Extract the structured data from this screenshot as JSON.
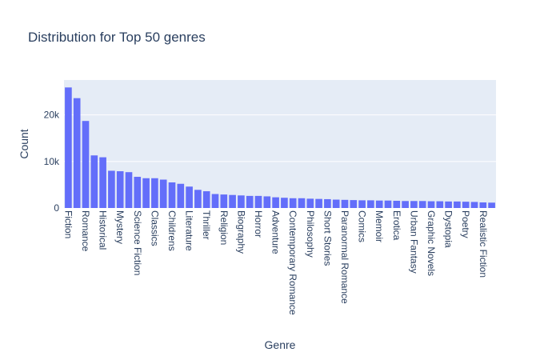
{
  "colors": {
    "bar": "#636efa",
    "plot_bg": "#e5ecf6",
    "grid": "#ffffff",
    "text": "#2a3f5f"
  },
  "chart_data": {
    "type": "bar",
    "title": "Distribution for Top 50 genres",
    "xlabel": "Genre",
    "ylabel": "Count",
    "ylim": [
      0,
      27500
    ],
    "yticks": [
      0,
      10000,
      20000
    ],
    "ytick_labels": [
      "0",
      "10k",
      "20k"
    ],
    "grid": true,
    "categories": [
      "Fiction",
      "",
      "Romance",
      "",
      "Historical",
      "",
      "Mystery",
      "",
      "Science Fiction",
      "",
      "Classics",
      "",
      "Childrens",
      "",
      "Literature",
      "",
      "Thriller",
      "",
      "Religion",
      "",
      "Biography",
      "",
      "Horror",
      "",
      "Adventure",
      "",
      "Contemporary Romance",
      "",
      "Philosophy",
      "",
      "Short Stories",
      "",
      "Paranormal Romance",
      "",
      "Comics",
      "",
      "Memoir",
      "",
      "Erotica",
      "",
      "Urban Fantasy",
      "",
      "Graphic Novels",
      "",
      "Dystopia",
      "",
      "Poetry",
      "",
      "Realistic Fiction",
      ""
    ],
    "values": [
      25900,
      23600,
      18700,
      11300,
      10900,
      8000,
      7900,
      7700,
      6700,
      6400,
      6400,
      6100,
      5500,
      5200,
      4600,
      3900,
      3600,
      3000,
      2900,
      2800,
      2700,
      2600,
      2600,
      2500,
      2300,
      2200,
      2100,
      2100,
      2000,
      1950,
      1900,
      1800,
      1750,
      1700,
      1650,
      1650,
      1600,
      1600,
      1550,
      1500,
      1500,
      1500,
      1450,
      1450,
      1400,
      1400,
      1350,
      1300,
      1200,
      1150
    ]
  }
}
